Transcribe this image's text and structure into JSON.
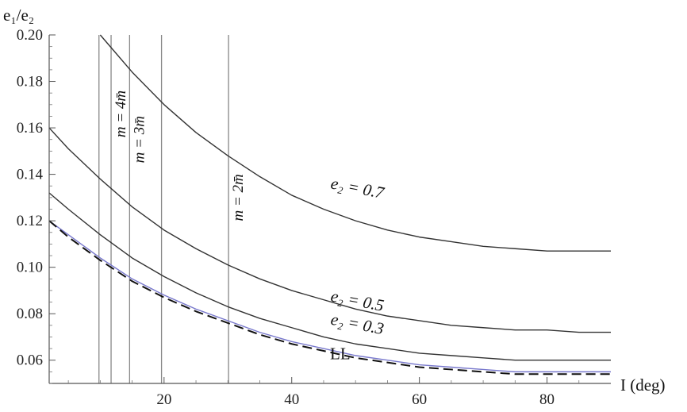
{
  "chart_data": {
    "type": "line",
    "xlabel": "I (deg)",
    "ylabel": "e₁/e₂",
    "xlim": [
      2,
      90
    ],
    "ylim": [
      0.05,
      0.2
    ],
    "xticks": [
      20,
      40,
      60,
      80
    ],
    "yticks": [
      0.06,
      0.08,
      0.1,
      0.12,
      0.14,
      0.16,
      0.18,
      0.2
    ],
    "ytick_labels": [
      "0.06",
      "0.08",
      "0.10",
      "0.12",
      "0.14",
      "0.16",
      "0.18",
      "0.20"
    ],
    "grid": false,
    "series": [
      {
        "name": "e₂ = 0.7",
        "color": "#333333",
        "style": "solid",
        "x": [
          10,
          15,
          20,
          25,
          30,
          35,
          40,
          45,
          50,
          55,
          60,
          65,
          70,
          75,
          80,
          85,
          90
        ],
        "y": [
          0.2,
          0.184,
          0.17,
          0.158,
          0.148,
          0.139,
          0.131,
          0.125,
          0.12,
          0.116,
          0.113,
          0.111,
          0.109,
          0.108,
          0.107,
          0.107,
          0.107
        ]
      },
      {
        "name": "e₂ = 0.5",
        "color": "#333333",
        "style": "solid",
        "x": [
          2,
          5,
          10,
          15,
          20,
          25,
          30,
          35,
          40,
          45,
          50,
          55,
          60,
          65,
          70,
          75,
          80,
          85,
          90
        ],
        "y": [
          0.16,
          0.151,
          0.138,
          0.126,
          0.116,
          0.108,
          0.101,
          0.095,
          0.09,
          0.086,
          0.082,
          0.079,
          0.077,
          0.075,
          0.074,
          0.073,
          0.073,
          0.072,
          0.072
        ]
      },
      {
        "name": "e₂ = 0.3",
        "color": "#333333",
        "style": "solid",
        "x": [
          2,
          5,
          10,
          15,
          20,
          25,
          30,
          35,
          40,
          45,
          50,
          55,
          60,
          65,
          70,
          75,
          80,
          85,
          90
        ],
        "y": [
          0.132,
          0.125,
          0.114,
          0.104,
          0.096,
          0.089,
          0.083,
          0.078,
          0.074,
          0.07,
          0.067,
          0.065,
          0.063,
          0.062,
          0.061,
          0.06,
          0.06,
          0.06,
          0.06
        ]
      },
      {
        "name": "",
        "color": "#7777cc",
        "style": "solid",
        "x": [
          2,
          5,
          10,
          15,
          20,
          25,
          30,
          35,
          40,
          45,
          50,
          55,
          60,
          65,
          70,
          75,
          80,
          85,
          90
        ],
        "y": [
          0.12,
          0.114,
          0.104,
          0.095,
          0.088,
          0.082,
          0.077,
          0.072,
          0.068,
          0.065,
          0.062,
          0.06,
          0.058,
          0.057,
          0.056,
          0.055,
          0.055,
          0.055,
          0.055
        ]
      },
      {
        "name": "LL",
        "color": "#111111",
        "style": "dashed",
        "x": [
          2,
          5,
          10,
          15,
          20,
          25,
          30,
          35,
          40,
          45,
          50,
          55,
          60,
          65,
          70,
          75,
          80,
          85,
          90
        ],
        "y": [
          0.12,
          0.113,
          0.103,
          0.094,
          0.087,
          0.081,
          0.076,
          0.071,
          0.067,
          0.064,
          0.061,
          0.059,
          0.057,
          0.056,
          0.055,
          0.054,
          0.054,
          0.054,
          0.054
        ]
      }
    ],
    "vertical_lines": [
      {
        "x": 9.8,
        "label": ""
      },
      {
        "x": 11.7,
        "label": "m = 4m̄"
      },
      {
        "x": 14.6,
        "label": "m = 3m̄"
      },
      {
        "x": 19.6,
        "label": ""
      },
      {
        "x": 30.1,
        "label": "m = 2m̄"
      }
    ],
    "annotations": [
      {
        "text": "e₂ = 0.7",
        "x": 46,
        "y": 0.134,
        "rotate": 11
      },
      {
        "text": "e₂ = 0.5",
        "x": 46,
        "y": 0.0855,
        "rotate": 11
      },
      {
        "text": "e₂ = 0.3",
        "x": 46,
        "y": 0.0755,
        "rotate": 11
      },
      {
        "text": "LL",
        "x": 46,
        "y": 0.0605,
        "rotate": 0
      }
    ]
  }
}
